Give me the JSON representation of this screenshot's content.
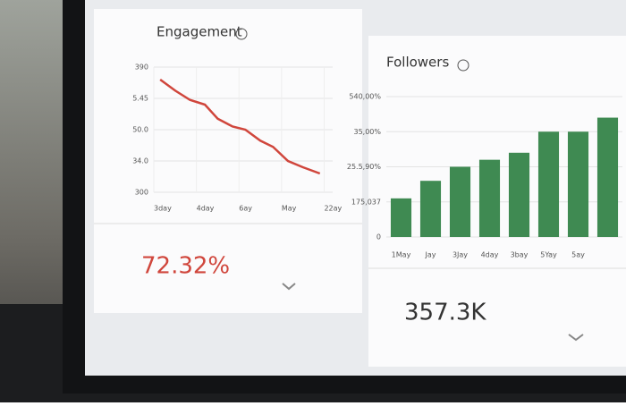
{
  "chart_data": [
    {
      "type": "line",
      "title": "Engagement",
      "color": "#d0463c",
      "kpi": "72.32%",
      "x": [
        0.15,
        0.5,
        0.85,
        1.2,
        1.5,
        1.85,
        2.15,
        2.5,
        2.8,
        3.15,
        3.5,
        3.9
      ],
      "values": [
        3.6,
        3.25,
        2.95,
        2.8,
        2.35,
        2.1,
        2.0,
        1.65,
        1.45,
        1.0,
        0.8,
        0.6
      ],
      "xlim": [
        0,
        4.2
      ],
      "ylim": [
        0,
        4
      ],
      "xticks": [
        {
          "value": 0,
          "label": "3day"
        },
        {
          "value": 1,
          "label": "4day"
        },
        {
          "value": 2,
          "label": "6ay"
        },
        {
          "value": 3,
          "label": "May"
        },
        {
          "value": 4,
          "label": "22ay"
        }
      ],
      "yticks": [
        {
          "value": 4,
          "label": "390"
        },
        {
          "value": 3,
          "label": "5.45"
        },
        {
          "value": 2,
          "label": "50.0"
        },
        {
          "value": 1,
          "label": "34.0"
        },
        {
          "value": 0,
          "label": "300"
        }
      ],
      "grid": true
    },
    {
      "type": "bar",
      "title": "Followers",
      "color": "#3f8a52",
      "kpi": "357.3K",
      "categories": [
        "1May",
        "Jay",
        "3Jay",
        "4day",
        "3bay",
        "5Yay",
        "5ay",
        null
      ],
      "values": [
        1.1,
        1.6,
        2.0,
        2.2,
        2.4,
        3.0,
        3.0,
        3.4
      ],
      "ylim": [
        0,
        4
      ],
      "yticks": [
        {
          "value": 4,
          "label": "540,00%"
        },
        {
          "value": 3,
          "label": "35,00%"
        },
        {
          "value": 2,
          "label": "25.5,90%"
        },
        {
          "value": 1,
          "label": "175,037"
        },
        {
          "value": 0,
          "label": "0"
        }
      ],
      "grid": true
    }
  ]
}
